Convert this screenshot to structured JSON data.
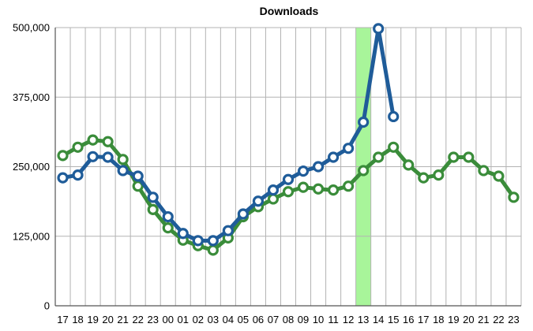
{
  "chart_data": {
    "type": "line",
    "title": "Downloads",
    "xlabel": "",
    "ylabel": "",
    "categories": [
      "17",
      "18",
      "19",
      "20",
      "21",
      "22",
      "23",
      "00",
      "01",
      "02",
      "03",
      "04",
      "05",
      "06",
      "07",
      "08",
      "09",
      "10",
      "11",
      "12",
      "13",
      "14",
      "15",
      "16",
      "17",
      "18",
      "19",
      "20",
      "21",
      "22",
      "23"
    ],
    "ylim": [
      0,
      500000
    ],
    "yticks": [
      0,
      125000,
      250000,
      375000,
      500000
    ],
    "ytick_labels": [
      "0",
      "125,000",
      "250,000",
      "375,000",
      "500,000"
    ],
    "grid": true,
    "highlight": {
      "category_index": 20,
      "color": "#a8f59a"
    },
    "series": [
      {
        "color": "#3a8c3a",
        "values": [
          270000,
          285000,
          298000,
          295000,
          263000,
          215000,
          173000,
          140000,
          118000,
          108000,
          100000,
          122000,
          160000,
          178000,
          192000,
          205000,
          213000,
          210000,
          208000,
          215000,
          243000,
          267000,
          285000,
          253000,
          230000,
          235000,
          267000,
          267000,
          243000,
          233000,
          195000
        ]
      },
      {
        "color": "#1f5c99",
        "values": [
          230000,
          235000,
          268000,
          267000,
          243000,
          233000,
          195000,
          160000,
          130000,
          117000,
          117000,
          135000,
          165000,
          188000,
          208000,
          227000,
          242000,
          250000,
          267000,
          283000,
          330000,
          498000,
          340000,
          null,
          null,
          null,
          null,
          null,
          null,
          null,
          null
        ]
      }
    ]
  }
}
